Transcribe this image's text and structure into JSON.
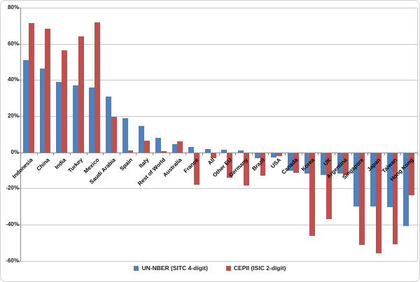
{
  "chart_data": {
    "type": "bar",
    "title": "",
    "xlabel": "",
    "ylabel": "",
    "ylim": [
      -60,
      80
    ],
    "ytick_step": 20,
    "yticklabels": [
      "80%",
      "60%",
      "40%",
      "20%",
      "0%",
      "-20%",
      "-40%",
      "-60%"
    ],
    "grid": true,
    "legend_position": "bottom",
    "categories": [
      "Indonesia",
      "China",
      "India",
      "Turkey",
      "Mexico",
      "Saudi Arabia",
      "Spain",
      "Italy",
      "Rest of World",
      "Australia",
      "France",
      "All",
      "Other EU",
      "Germany",
      "Brazil",
      "USA",
      "Canada",
      "Korea",
      "UK",
      "Argentina",
      "Singapore",
      "Japan",
      "Taiwan",
      "Hong Kong"
    ],
    "series": [
      {
        "name": "UN-NBER (SITC 4-digit)",
        "color": "#4F81BD",
        "values": [
          51,
          46.5,
          39,
          37,
          36,
          31,
          19,
          14.5,
          8,
          4.5,
          3,
          2,
          1.5,
          1,
          -3,
          -2.5,
          -10,
          -11.5,
          -12,
          -11.5,
          -29.5,
          -29.5,
          -30,
          -40.5
        ]
      },
      {
        "name": "CEPII (ISIC 2-digit)",
        "color": "#C0504D",
        "values": [
          71.5,
          68.5,
          56.5,
          64,
          72,
          19.5,
          1,
          6.5,
          0.5,
          6,
          -17.5,
          -3,
          -13.5,
          -18,
          -12.5,
          -1.5,
          -11,
          -46,
          -36.5,
          -12,
          -51,
          -55.5,
          -50.5,
          -23.5
        ]
      }
    ]
  }
}
